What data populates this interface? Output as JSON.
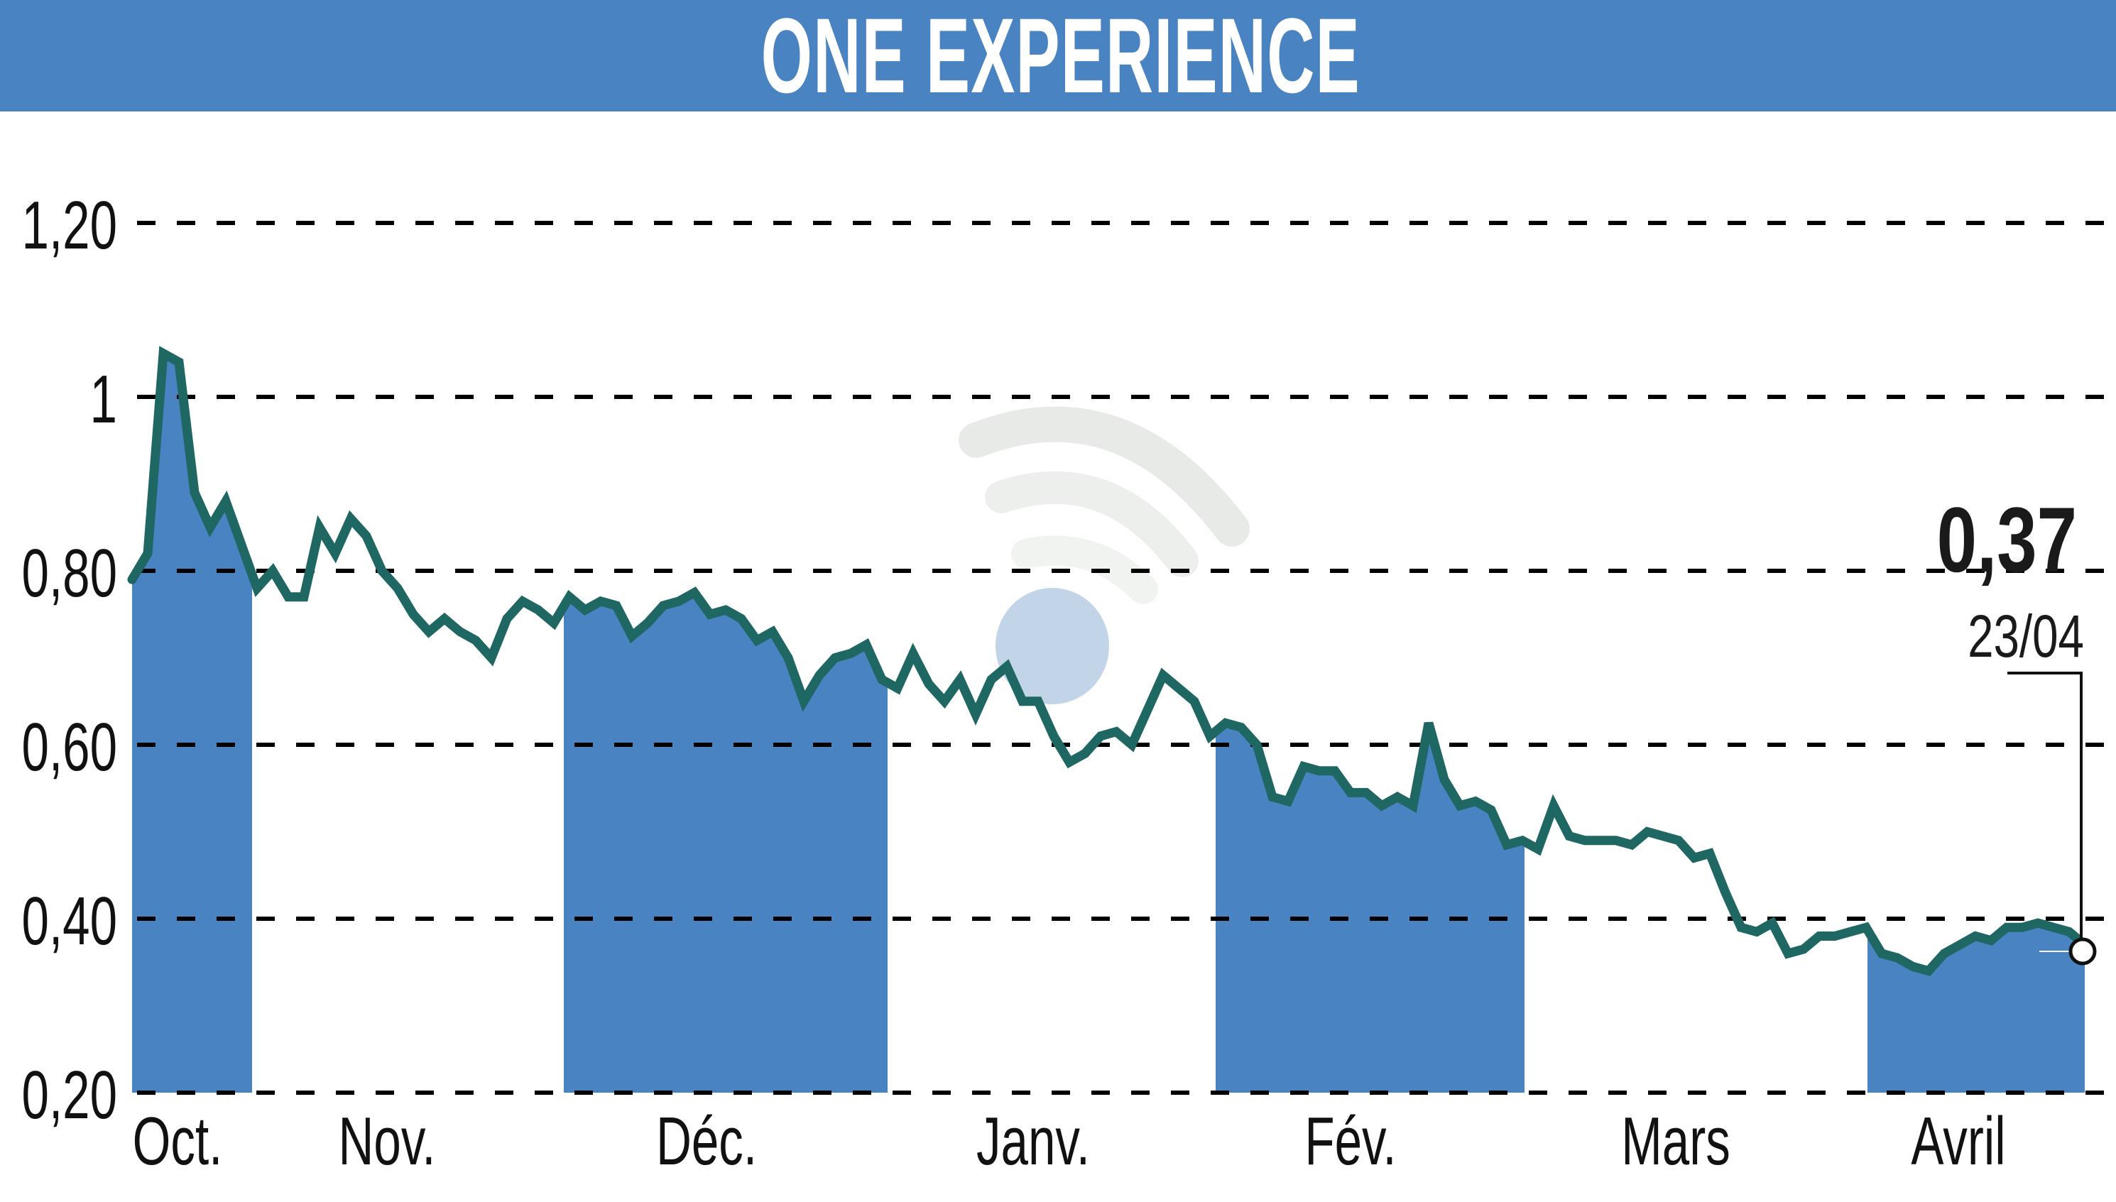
{
  "header": {
    "title": "ONE EXPERIENCE",
    "background_color": "#4a83c1",
    "text_color": "#ffffff"
  },
  "annotation": {
    "last_value": "0,37",
    "last_date": "23/04"
  },
  "y_axis": {
    "ticks": [
      "1,20",
      "1",
      "0,80",
      "0,60",
      "0,40",
      "0,20"
    ]
  },
  "x_axis": {
    "months": [
      "Oct.",
      "Nov.",
      "Déc.",
      "Janv.",
      "Fév.",
      "Mars",
      "Avril"
    ]
  },
  "colors": {
    "line": "#1f6763",
    "band_fill": "#4a83c1",
    "grid": "#000000",
    "watermark_arc": "#e6e8e6",
    "watermark_dot": "#bcd0e6"
  },
  "watermark": {
    "icon": "wifi-signal-watermark-icon"
  },
  "chart_data": {
    "type": "line",
    "title": "ONE EXPERIENCE",
    "xlabel": "",
    "ylabel": "",
    "ylim": [
      0.2,
      1.2
    ],
    "yticks": [
      0.2,
      0.4,
      0.6,
      0.8,
      1.0,
      1.2
    ],
    "ytick_labels": [
      "0,20",
      "0,40",
      "0,60",
      "0,80",
      "1",
      "1,20"
    ],
    "categories": [
      "Oct.",
      "Nov.",
      "Déc.",
      "Janv.",
      "Fév.",
      "Mars",
      "Avril"
    ],
    "grid": "horizontal dashed",
    "shaded_months": [
      "Oct.",
      "Déc.",
      "Fév.",
      "Avril"
    ],
    "last_point": {
      "date": "23/04",
      "value": 0.37
    },
    "series": [
      {
        "name": "ONE EXPERIENCE",
        "values": [
          0.79,
          0.82,
          1.05,
          1.04,
          0.89,
          0.85,
          0.88,
          0.83,
          0.78,
          0.8,
          0.77,
          0.77,
          0.85,
          0.82,
          0.86,
          0.84,
          0.8,
          0.78,
          0.75,
          0.73,
          0.745,
          0.73,
          0.72,
          0.7,
          0.745,
          0.765,
          0.755,
          0.74,
          0.77,
          0.755,
          0.765,
          0.76,
          0.725,
          0.74,
          0.76,
          0.765,
          0.775,
          0.75,
          0.755,
          0.745,
          0.72,
          0.73,
          0.7,
          0.65,
          0.68,
          0.7,
          0.705,
          0.715,
          0.675,
          0.665,
          0.705,
          0.67,
          0.65,
          0.675,
          0.635,
          0.675,
          0.69,
          0.65,
          0.65,
          0.61,
          0.58,
          0.59,
          0.61,
          0.615,
          0.6,
          0.64,
          0.68,
          0.665,
          0.65,
          0.61,
          0.625,
          0.62,
          0.6,
          0.54,
          0.535,
          0.575,
          0.57,
          0.57,
          0.545,
          0.545,
          0.53,
          0.54,
          0.53,
          0.625,
          0.56,
          0.53,
          0.535,
          0.525,
          0.485,
          0.49,
          0.48,
          0.53,
          0.495,
          0.49,
          0.49,
          0.49,
          0.485,
          0.5,
          0.495,
          0.49,
          0.47,
          0.475,
          0.43,
          0.39,
          0.385,
          0.395,
          0.36,
          0.365,
          0.38,
          0.38,
          0.385,
          0.39,
          0.36,
          0.355,
          0.345,
          0.34,
          0.36,
          0.37,
          0.38,
          0.375,
          0.39,
          0.39,
          0.395,
          0.39,
          0.385,
          0.37
        ]
      }
    ]
  }
}
